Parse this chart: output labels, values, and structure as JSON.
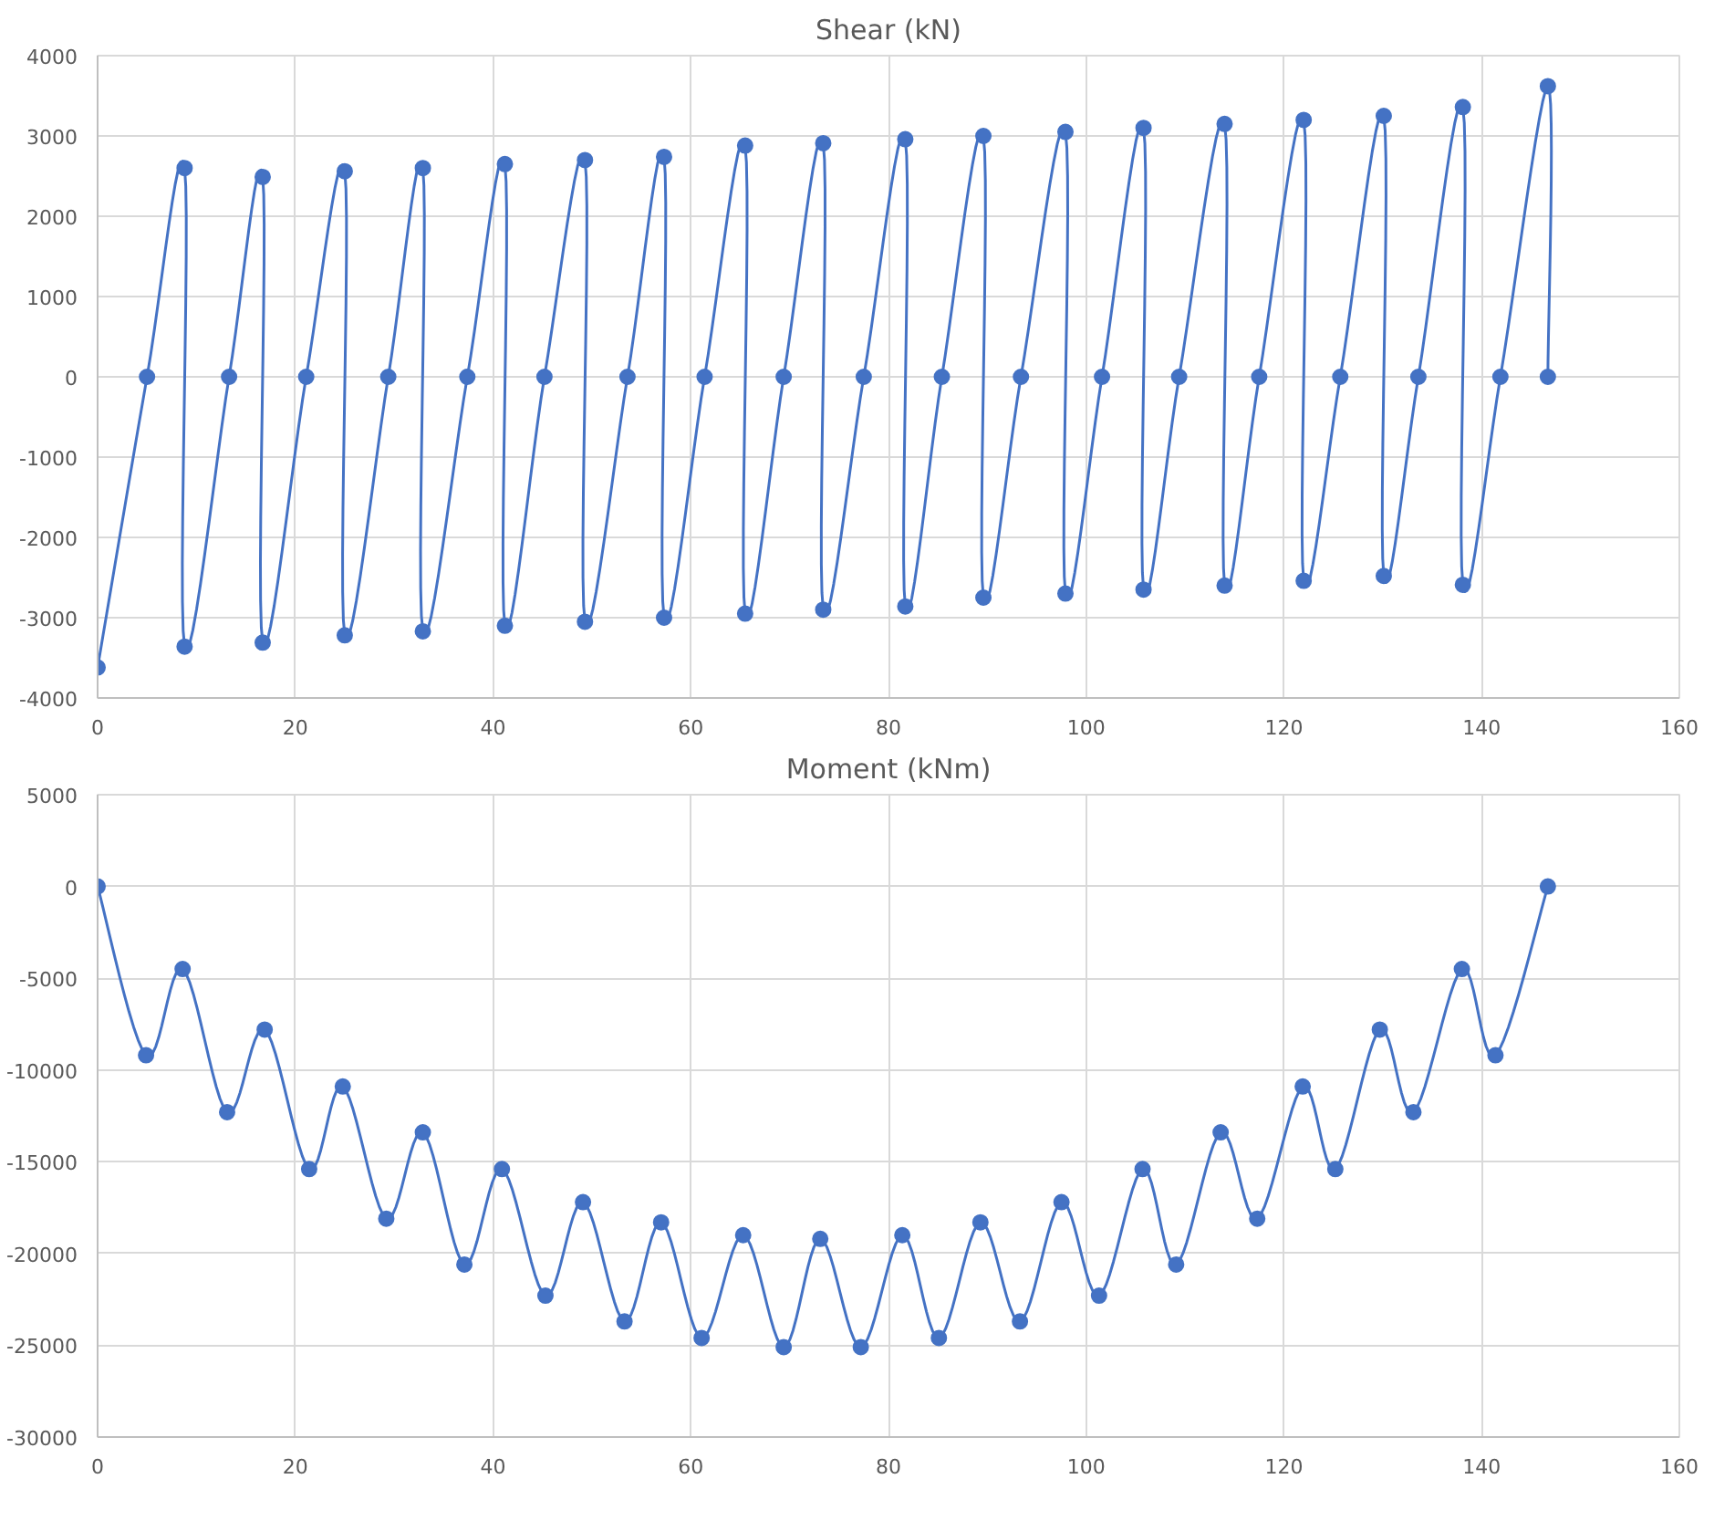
{
  "chart_data": [
    {
      "type": "line",
      "title": "Shear (kN)",
      "marker": "circle",
      "grid": true,
      "xlim": [
        0,
        160
      ],
      "xticks": [
        0,
        20,
        40,
        60,
        80,
        100,
        120,
        140,
        160
      ],
      "ylim": [
        -4000,
        4000
      ],
      "yticks": [
        -4000,
        -3000,
        -2000,
        -1000,
        0,
        1000,
        2000,
        3000,
        4000
      ],
      "series": [
        {
          "color": "#4472c4",
          "x": [
            0,
            5.0,
            8.8,
            8.8,
            13.3,
            16.7,
            16.7,
            21.1,
            25.0,
            25.0,
            29.4,
            32.9,
            32.9,
            37.4,
            41.2,
            41.2,
            45.2,
            49.3,
            49.3,
            53.6,
            57.3,
            57.3,
            61.4,
            65.5,
            65.5,
            69.4,
            73.4,
            73.4,
            77.5,
            81.7,
            81.7,
            85.4,
            89.6,
            89.6,
            93.4,
            97.9,
            97.9,
            101.6,
            105.8,
            105.8,
            109.4,
            114.0,
            114.0,
            117.5,
            122.0,
            122.0,
            125.7,
            130.1,
            130.1,
            133.6,
            138.1,
            138.1,
            141.9,
            146.7,
            146.7
          ],
          "values": [
            -3620,
            0,
            2600,
            -3360,
            0,
            2490,
            -3310,
            0,
            2560,
            -3220,
            0,
            2600,
            -3170,
            0,
            2650,
            -3100,
            0,
            2700,
            -3050,
            0,
            2740,
            -3000,
            0,
            2880,
            -2950,
            0,
            2910,
            -2900,
            0,
            2960,
            -2860,
            0,
            3000,
            -2750,
            0,
            3050,
            -2700,
            0,
            3100,
            -2650,
            0,
            3150,
            -2600,
            0,
            3200,
            -2540,
            0,
            3250,
            -2480,
            0,
            3360,
            -2590,
            0,
            3620,
            0
          ]
        }
      ]
    },
    {
      "type": "line",
      "title": "Moment (kNm)",
      "marker": "circle",
      "grid": true,
      "xlim": [
        0,
        160
      ],
      "xticks": [
        0,
        20,
        40,
        60,
        80,
        100,
        120,
        140,
        160
      ],
      "ylim": [
        -30000,
        5000
      ],
      "yticks": [
        -30000,
        -25000,
        -20000,
        -15000,
        -10000,
        -5000,
        0,
        5000
      ],
      "series": [
        {
          "color": "#4472c4",
          "x": [
            0,
            4.9,
            8.6,
            13.1,
            16.9,
            21.4,
            24.8,
            29.2,
            32.9,
            37.1,
            40.9,
            45.3,
            49.1,
            53.3,
            57.0,
            61.1,
            65.3,
            69.4,
            73.1,
            77.2,
            81.4,
            85.1,
            89.3,
            93.3,
            97.5,
            101.3,
            105.7,
            109.1,
            113.6,
            117.3,
            121.9,
            125.2,
            129.7,
            133.1,
            138.0,
            141.4,
            146.7
          ],
          "values": [
            0,
            -9200,
            -4500,
            -12300,
            -7800,
            -15400,
            -10900,
            -18100,
            -13400,
            -20600,
            -15400,
            -22300,
            -17200,
            -23700,
            -18300,
            -24600,
            -19000,
            -25100,
            -19200,
            -25100,
            -19000,
            -24600,
            -18300,
            -23700,
            -17200,
            -22300,
            -15400,
            -20600,
            -13400,
            -18100,
            -10900,
            -15400,
            -7800,
            -12300,
            -4500,
            -9200,
            0
          ]
        }
      ]
    }
  ]
}
